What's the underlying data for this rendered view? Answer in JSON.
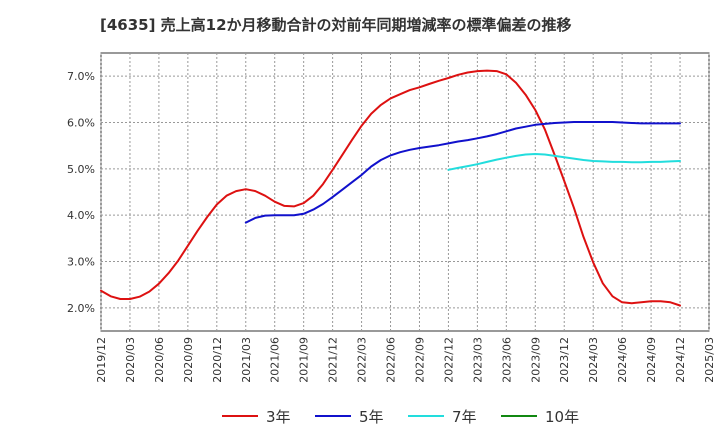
{
  "title": "[4635]  売上高12か月移動合計の対前年同期増減率の標準偏差の推移",
  "chart_data": {
    "type": "line",
    "title": "[4635]  売上高12か月移動合計の対前年同期増減率の標準偏差の推移",
    "xlabel": "",
    "ylabel": "",
    "x_range": [
      "2019-12",
      "2025-03"
    ],
    "ylim": [
      1.5,
      7.5
    ],
    "y_ticks": [
      2.0,
      3.0,
      4.0,
      5.0,
      6.0,
      7.0
    ],
    "y_tick_labels": [
      "2.0%",
      "3.0%",
      "4.0%",
      "5.0%",
      "6.0%",
      "7.0%"
    ],
    "x_tick_labels": [
      "2019/12",
      "2020/03",
      "2020/06",
      "2020/09",
      "2020/12",
      "2021/03",
      "2021/06",
      "2021/09",
      "2021/12",
      "2022/03",
      "2022/06",
      "2022/09",
      "2022/12",
      "2023/03",
      "2023/06",
      "2023/09",
      "2023/12",
      "2024/03",
      "2024/06",
      "2024/09",
      "2024/12",
      "2025/03"
    ],
    "grid": true,
    "legend_position": "bottom",
    "series": [
      {
        "name": "3年",
        "color": "#dd1111",
        "x": [
          "2019-12",
          "2020-01",
          "2020-02",
          "2020-03",
          "2020-04",
          "2020-05",
          "2020-06",
          "2020-07",
          "2020-08",
          "2020-09",
          "2020-10",
          "2020-11",
          "2020-12",
          "2021-01",
          "2021-02",
          "2021-03",
          "2021-04",
          "2021-05",
          "2021-06",
          "2021-07",
          "2021-08",
          "2021-09",
          "2021-10",
          "2021-11",
          "2021-12",
          "2022-01",
          "2022-02",
          "2022-03",
          "2022-04",
          "2022-05",
          "2022-06",
          "2022-07",
          "2022-08",
          "2022-09",
          "2022-10",
          "2022-11",
          "2022-12",
          "2023-01",
          "2023-02",
          "2023-03",
          "2023-04",
          "2023-05",
          "2023-06",
          "2023-07",
          "2023-08",
          "2023-09",
          "2023-10",
          "2023-11",
          "2023-12",
          "2024-01",
          "2024-02",
          "2024-03",
          "2024-04",
          "2024-05",
          "2024-06",
          "2024-07",
          "2024-08",
          "2024-09",
          "2024-10",
          "2024-11",
          "2024-12"
        ],
        "values": [
          2.37,
          2.25,
          2.19,
          2.19,
          2.24,
          2.35,
          2.52,
          2.75,
          3.02,
          3.34,
          3.66,
          3.96,
          4.23,
          4.42,
          4.52,
          4.56,
          4.52,
          4.42,
          4.29,
          4.2,
          4.19,
          4.26,
          4.42,
          4.67,
          4.98,
          5.3,
          5.62,
          5.93,
          6.19,
          6.38,
          6.52,
          6.61,
          6.7,
          6.76,
          6.83,
          6.9,
          6.96,
          7.03,
          7.08,
          7.11,
          7.12,
          7.11,
          7.04,
          6.86,
          6.6,
          6.27,
          5.85,
          5.3,
          4.74,
          4.16,
          3.53,
          2.98,
          2.53,
          2.25,
          2.12,
          2.1,
          2.12,
          2.14,
          2.14,
          2.12,
          2.05
        ]
      },
      {
        "name": "5年",
        "color": "#1111cc",
        "x": [
          "2021-03",
          "2021-04",
          "2021-05",
          "2021-06",
          "2021-07",
          "2021-08",
          "2021-09",
          "2021-10",
          "2021-11",
          "2021-12",
          "2022-01",
          "2022-02",
          "2022-03",
          "2022-04",
          "2022-05",
          "2022-06",
          "2022-07",
          "2022-08",
          "2022-09",
          "2022-10",
          "2022-11",
          "2022-12",
          "2023-01",
          "2023-02",
          "2023-03",
          "2023-04",
          "2023-05",
          "2023-06",
          "2023-07",
          "2023-08",
          "2023-09",
          "2023-10",
          "2023-11",
          "2023-12",
          "2024-01",
          "2024-02",
          "2024-03",
          "2024-04",
          "2024-05",
          "2024-06",
          "2024-07",
          "2024-08",
          "2024-09",
          "2024-10",
          "2024-11",
          "2024-12"
        ],
        "values": [
          3.84,
          3.94,
          3.99,
          4.0,
          4.0,
          4.0,
          4.03,
          4.12,
          4.24,
          4.39,
          4.55,
          4.71,
          4.87,
          5.05,
          5.19,
          5.29,
          5.36,
          5.41,
          5.45,
          5.48,
          5.51,
          5.55,
          5.59,
          5.62,
          5.66,
          5.7,
          5.75,
          5.81,
          5.87,
          5.91,
          5.95,
          5.97,
          5.99,
          6.0,
          6.01,
          6.01,
          6.01,
          6.01,
          6.01,
          6.0,
          5.99,
          5.98,
          5.98,
          5.98,
          5.98,
          5.98
        ]
      },
      {
        "name": "7年",
        "color": "#22dddd",
        "x": [
          "2022-12",
          "2023-01",
          "2023-02",
          "2023-03",
          "2023-04",
          "2023-05",
          "2023-06",
          "2023-07",
          "2023-08",
          "2023-09",
          "2023-10",
          "2023-11",
          "2023-12",
          "2024-01",
          "2024-02",
          "2024-03",
          "2024-04",
          "2024-05",
          "2024-06",
          "2024-07",
          "2024-08",
          "2024-09",
          "2024-10",
          "2024-11",
          "2024-12"
        ],
        "values": [
          4.98,
          5.02,
          5.06,
          5.1,
          5.15,
          5.2,
          5.24,
          5.28,
          5.31,
          5.32,
          5.31,
          5.28,
          5.25,
          5.22,
          5.19,
          5.17,
          5.16,
          5.15,
          5.15,
          5.14,
          5.14,
          5.15,
          5.15,
          5.16,
          5.17
        ]
      },
      {
        "name": "10年",
        "color": "#118811",
        "x": [],
        "values": []
      }
    ]
  }
}
